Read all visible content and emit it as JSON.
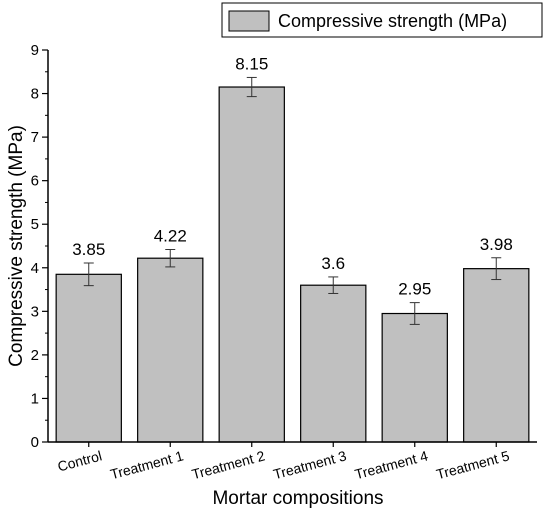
{
  "chart_data": {
    "type": "bar",
    "xlabel": "Mortar compositions",
    "ylabel": "Compressive strength (MPa)",
    "ylim": [
      0,
      9
    ],
    "yticks": [
      0,
      1,
      2,
      3,
      4,
      5,
      6,
      7,
      8,
      9
    ],
    "categories": [
      "Control",
      "Treatment 1",
      "Treatment 2",
      "Treatment 3",
      "Treatment 4",
      "Treatment 5"
    ],
    "series": [
      {
        "name": "Compressive strength (MPa)",
        "values": [
          3.85,
          4.22,
          8.15,
          3.6,
          2.95,
          3.98
        ],
        "errors": [
          0.26,
          0.2,
          0.22,
          0.19,
          0.25,
          0.25
        ],
        "data_labels": [
          "3.85",
          "4.22",
          "8.15",
          "3.6",
          "2.95",
          "3.98"
        ]
      }
    ],
    "legend_position": "top-right",
    "grid": false,
    "colors": {
      "bar_fill": "#c0c0c0",
      "bar_stroke": "#000000",
      "axis": "#000000"
    }
  }
}
